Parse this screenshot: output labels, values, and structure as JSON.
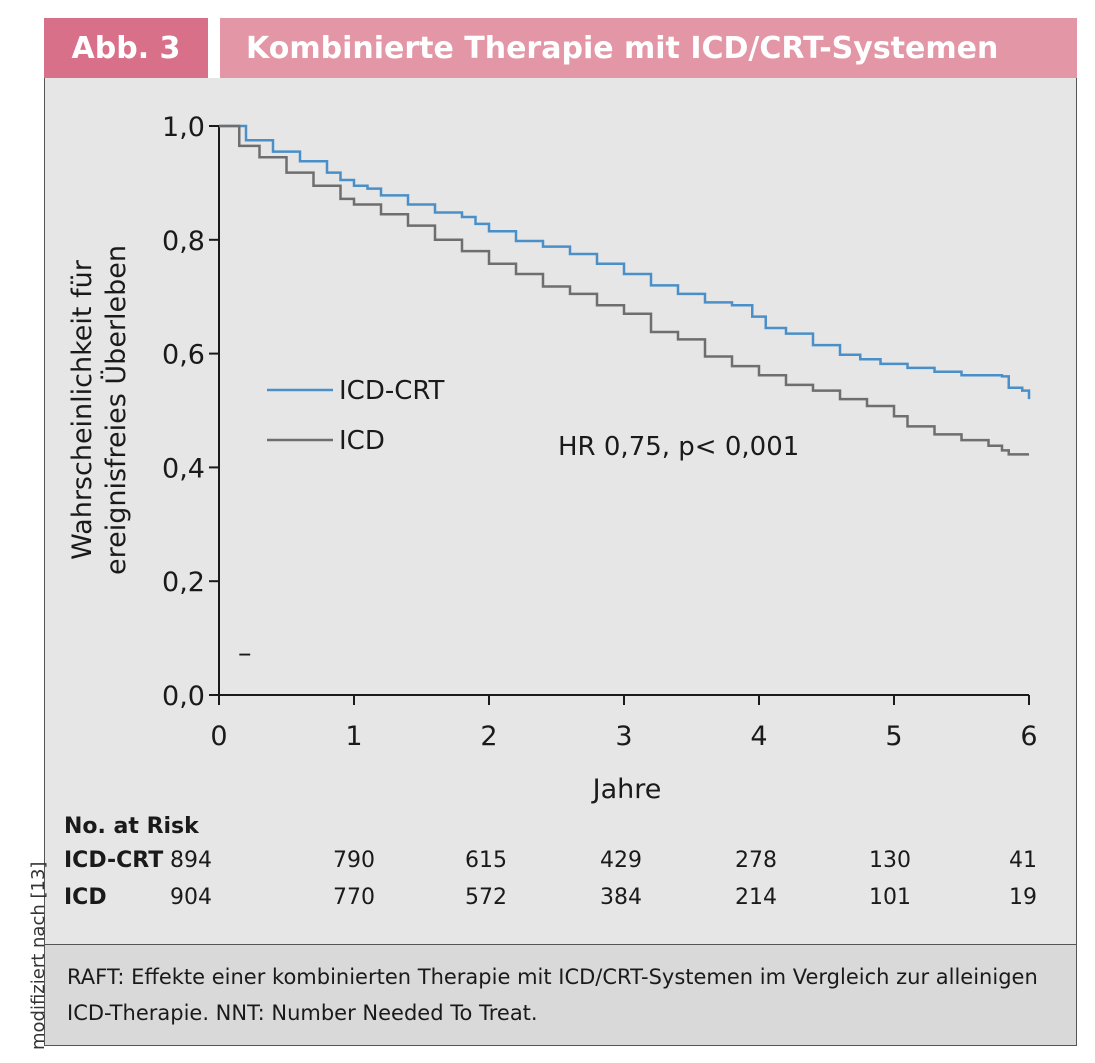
{
  "header": {
    "badge": "Abb. 3",
    "title": "Kombinierte Therapie mit ICD/CRT-Systemen"
  },
  "colors": {
    "badge_bg": "#d9708a",
    "title_bg": "#e397a6",
    "panel_bg": "#e6e6e6",
    "caption_bg": "#d9d9d9",
    "icd_crt": "#4a8fc7",
    "icd": "#6e6e6e"
  },
  "chart_data": {
    "type": "line",
    "xlabel": "Jahre",
    "ylabel": [
      "Wahrscheinlichkeit für",
      "ereignisfreies Überleben"
    ],
    "xlim": [
      0,
      6
    ],
    "ylim": [
      0,
      1
    ],
    "x_ticks": [
      0,
      1,
      2,
      3,
      4,
      5,
      6
    ],
    "x_tick_labels": [
      "0",
      "1",
      "2",
      "3",
      "4",
      "5",
      "6"
    ],
    "y_ticks": [
      0,
      0.2,
      0.4,
      0.6,
      0.8,
      1.0
    ],
    "y_tick_labels": [
      "0,0",
      "0,2",
      "0,4",
      "0,6",
      "0,8",
      "1,0"
    ],
    "grid": false,
    "legend_position": "center-left",
    "annotation": "HR 0,75, p< 0,001",
    "stray_mark": "–",
    "series": [
      {
        "name": "ICD-CRT",
        "points": [
          [
            0,
            1.0
          ],
          [
            0.2,
            0.975
          ],
          [
            0.4,
            0.955
          ],
          [
            0.6,
            0.938
          ],
          [
            0.8,
            0.918
          ],
          [
            0.9,
            0.905
          ],
          [
            1.0,
            0.895
          ],
          [
            1.1,
            0.89
          ],
          [
            1.2,
            0.878
          ],
          [
            1.4,
            0.862
          ],
          [
            1.6,
            0.848
          ],
          [
            1.8,
            0.84
          ],
          [
            1.9,
            0.828
          ],
          [
            2.0,
            0.815
          ],
          [
            2.2,
            0.798
          ],
          [
            2.4,
            0.788
          ],
          [
            2.6,
            0.775
          ],
          [
            2.8,
            0.758
          ],
          [
            3.0,
            0.74
          ],
          [
            3.2,
            0.72
          ],
          [
            3.4,
            0.705
          ],
          [
            3.6,
            0.69
          ],
          [
            3.8,
            0.685
          ],
          [
            3.95,
            0.665
          ],
          [
            4.05,
            0.645
          ],
          [
            4.2,
            0.635
          ],
          [
            4.4,
            0.615
          ],
          [
            4.6,
            0.598
          ],
          [
            4.75,
            0.59
          ],
          [
            4.9,
            0.582
          ],
          [
            5.1,
            0.575
          ],
          [
            5.3,
            0.568
          ],
          [
            5.5,
            0.562
          ],
          [
            5.8,
            0.56
          ],
          [
            5.85,
            0.54
          ],
          [
            5.95,
            0.535
          ],
          [
            6.0,
            0.52
          ]
        ]
      },
      {
        "name": "ICD",
        "points": [
          [
            0,
            1.0
          ],
          [
            0.15,
            0.965
          ],
          [
            0.3,
            0.945
          ],
          [
            0.5,
            0.918
          ],
          [
            0.7,
            0.895
          ],
          [
            0.9,
            0.872
          ],
          [
            1.0,
            0.862
          ],
          [
            1.2,
            0.845
          ],
          [
            1.4,
            0.825
          ],
          [
            1.6,
            0.8
          ],
          [
            1.8,
            0.78
          ],
          [
            2.0,
            0.758
          ],
          [
            2.2,
            0.74
          ],
          [
            2.4,
            0.718
          ],
          [
            2.6,
            0.705
          ],
          [
            2.8,
            0.685
          ],
          [
            3.0,
            0.67
          ],
          [
            3.2,
            0.638
          ],
          [
            3.4,
            0.625
          ],
          [
            3.6,
            0.595
          ],
          [
            3.8,
            0.578
          ],
          [
            4.0,
            0.562
          ],
          [
            4.2,
            0.545
          ],
          [
            4.4,
            0.535
          ],
          [
            4.6,
            0.52
          ],
          [
            4.8,
            0.508
          ],
          [
            5.0,
            0.49
          ],
          [
            5.1,
            0.472
          ],
          [
            5.3,
            0.458
          ],
          [
            5.5,
            0.448
          ],
          [
            5.7,
            0.438
          ],
          [
            5.8,
            0.43
          ],
          [
            5.85,
            0.423
          ],
          [
            6.0,
            0.423
          ]
        ]
      }
    ]
  },
  "risk_table": {
    "title": "No. at Risk",
    "rows": [
      {
        "label": "ICD-CRT",
        "values": [
          "894",
          "790",
          "615",
          "429",
          "278",
          "130",
          "41"
        ]
      },
      {
        "label": "ICD",
        "values": [
          "904",
          "770",
          "572",
          "384",
          "214",
          "101",
          "19"
        ]
      }
    ]
  },
  "caption": "RAFT: Effekte einer kombinierten Therapie mit ICD/CRT-Systemen im Vergleich zur alleinigen ICD-Therapie. NNT: Number Needed To Treat.",
  "side_note": "modifiziert nach [13]"
}
